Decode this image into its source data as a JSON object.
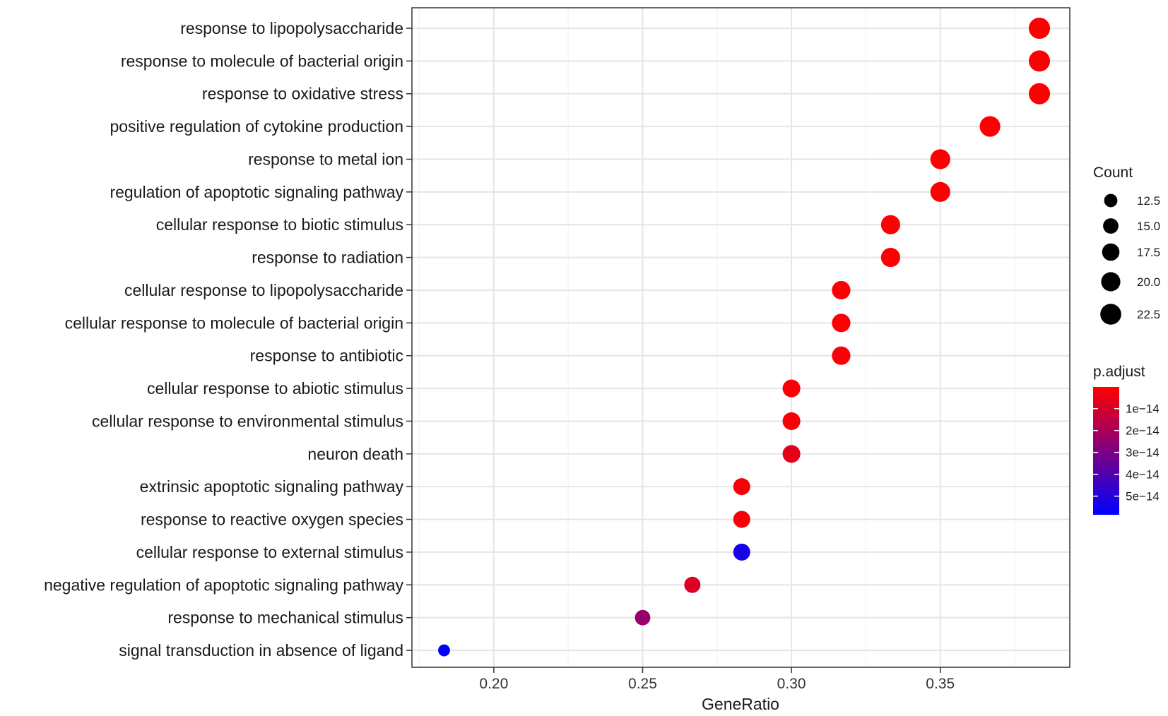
{
  "chart_data": {
    "type": "scatter",
    "xlabel": "GeneRatio",
    "ylabel": "",
    "xlim": [
      0.1725,
      0.3935
    ],
    "x_ticks": [
      0.2,
      0.25,
      0.3,
      0.35
    ],
    "x_tick_labels": [
      "0.20",
      "0.25",
      "0.30",
      "0.35"
    ],
    "grid": true,
    "categories": [
      "response to lipopolysaccharide",
      "response to molecule of bacterial origin",
      "response to oxidative stress",
      "positive regulation of cytokine production",
      "response to metal ion",
      "regulation of apoptotic signaling pathway",
      "cellular response to biotic stimulus",
      "response to radiation",
      "cellular response to lipopolysaccharide",
      "cellular response to molecule of bacterial origin",
      "response to antibiotic",
      "cellular response to abiotic stimulus",
      "cellular response to environmental stimulus",
      "neuron death",
      "extrinsic apoptotic signaling pathway",
      "response to reactive oxygen species",
      "cellular response to external stimulus",
      "negative regulation of apoptotic signaling pathway",
      "response to mechanical stimulus",
      "signal transduction in absence of ligand"
    ],
    "points": [
      {
        "term": "response to lipopolysaccharide",
        "gene_ratio": 0.3833,
        "count": 23,
        "p_adjust": 2e-16
      },
      {
        "term": "response to molecule of bacterial origin",
        "gene_ratio": 0.3833,
        "count": 23,
        "p_adjust": 2e-16
      },
      {
        "term": "response to oxidative stress",
        "gene_ratio": 0.3833,
        "count": 23,
        "p_adjust": 2e-16
      },
      {
        "term": "positive regulation of cytokine production",
        "gene_ratio": 0.3667,
        "count": 22,
        "p_adjust": 3e-16
      },
      {
        "term": "response to metal ion",
        "gene_ratio": 0.35,
        "count": 21,
        "p_adjust": 4e-16
      },
      {
        "term": "regulation of apoptotic signaling pathway",
        "gene_ratio": 0.35,
        "count": 21,
        "p_adjust": 4e-16
      },
      {
        "term": "cellular response to biotic stimulus",
        "gene_ratio": 0.3333,
        "count": 20,
        "p_adjust": 5e-16
      },
      {
        "term": "response to radiation",
        "gene_ratio": 0.3333,
        "count": 20,
        "p_adjust": 6e-16
      },
      {
        "term": "cellular response to lipopolysaccharide",
        "gene_ratio": 0.3167,
        "count": 19,
        "p_adjust": 8e-16
      },
      {
        "term": "cellular response to molecule of bacterial origin",
        "gene_ratio": 0.3167,
        "count": 19,
        "p_adjust": 9e-16
      },
      {
        "term": "response to antibiotic",
        "gene_ratio": 0.3167,
        "count": 19,
        "p_adjust": 1e-15
      },
      {
        "term": "cellular response to abiotic stimulus",
        "gene_ratio": 0.3,
        "count": 18,
        "p_adjust": 1.5e-15
      },
      {
        "term": "cellular response to environmental stimulus",
        "gene_ratio": 0.3,
        "count": 18,
        "p_adjust": 1.5e-15
      },
      {
        "term": "neuron death",
        "gene_ratio": 0.3,
        "count": 18,
        "p_adjust": 6e-15
      },
      {
        "term": "extrinsic apoptotic signaling pathway",
        "gene_ratio": 0.2833,
        "count": 17,
        "p_adjust": 2e-15
      },
      {
        "term": "response to reactive oxygen species",
        "gene_ratio": 0.2833,
        "count": 17,
        "p_adjust": 2e-15
      },
      {
        "term": "cellular response to external stimulus",
        "gene_ratio": 0.2833,
        "count": 17,
        "p_adjust": 5.3e-14
      },
      {
        "term": "negative regulation of apoptotic signaling pathway",
        "gene_ratio": 0.2667,
        "count": 16,
        "p_adjust": 8e-15
      },
      {
        "term": "response to mechanical stimulus",
        "gene_ratio": 0.25,
        "count": 15,
        "p_adjust": 2.4e-14
      },
      {
        "term": "signal transduction in absence of ligand",
        "gene_ratio": 0.1833,
        "count": 11,
        "p_adjust": 5.8e-14
      }
    ],
    "legend": {
      "placement": "right",
      "size": {
        "title": "Count",
        "values": [
          12.5,
          15.0,
          17.5,
          20.0,
          22.5
        ],
        "labels": [
          "12.5",
          "15.0",
          "17.5",
          "20.0",
          "22.5"
        ]
      },
      "color": {
        "title": "p.adjust",
        "range": [
          1e-16,
          5.85e-14
        ],
        "low_color": "#ff0000",
        "high_color": "#0000ff",
        "ticks": [
          1e-14,
          2e-14,
          3e-14,
          4e-14,
          5e-14
        ],
        "labels": [
          "1e−14",
          "2e−14",
          "3e−14",
          "4e−14",
          "5e−14"
        ]
      }
    }
  }
}
